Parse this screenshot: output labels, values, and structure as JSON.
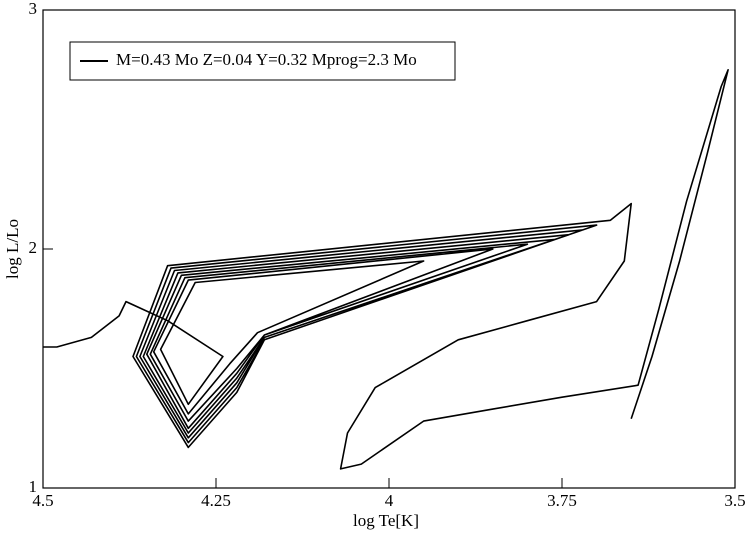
{
  "chart_data": {
    "type": "line",
    "x_label": "log Te[K]",
    "y_label": "log L/Lo",
    "xlim": [
      4.5,
      3.5
    ],
    "xticks": [
      4.5,
      4.25,
      4,
      3.75,
      3.5
    ],
    "ylim": [
      1,
      3
    ],
    "yticks": [
      1,
      2,
      3
    ],
    "legend": "upper left",
    "x": [
      3.65,
      3.62,
      3.58,
      3.54,
      3.51,
      3.52,
      3.57,
      3.61,
      3.64,
      3.75,
      3.85,
      3.95,
      4.04,
      4.07,
      4.06,
      4.02,
      3.9,
      3.8,
      3.7,
      3.66,
      3.65,
      3.68,
      4.32,
      4.37,
      4.29,
      4.22,
      4.18,
      3.7,
      4.315,
      4.365,
      4.29,
      4.22,
      4.18,
      3.72,
      4.31,
      4.36,
      4.29,
      4.22,
      4.18,
      3.74,
      4.305,
      4.355,
      4.29,
      4.22,
      4.18,
      3.76,
      4.3,
      4.35,
      4.29,
      4.22,
      4.18,
      3.8,
      4.295,
      4.345,
      4.29,
      4.22,
      4.18,
      3.85,
      4.29,
      4.34,
      4.29,
      4.23,
      4.19,
      3.95,
      4.28,
      4.33,
      4.29,
      4.24,
      4.32,
      4.38,
      4.39,
      4.43,
      4.48,
      4.5
    ],
    "series": [
      {
        "name": "M=0.43 Mo Z=0.04 Y=0.32 Mprog=2.3 Mo",
        "color": "#000000",
        "values": [
          1.29,
          1.55,
          1.95,
          2.4,
          2.75,
          2.68,
          2.2,
          1.75,
          1.43,
          1.38,
          1.33,
          1.28,
          1.1,
          1.08,
          1.23,
          1.42,
          1.62,
          1.7,
          1.78,
          1.95,
          2.19,
          2.12,
          1.93,
          1.55,
          1.17,
          1.4,
          1.62,
          2.1,
          1.92,
          1.55,
          1.19,
          1.42,
          1.62,
          2.08,
          1.91,
          1.55,
          1.21,
          1.44,
          1.63,
          2.06,
          1.9,
          1.55,
          1.23,
          1.46,
          1.63,
          2.04,
          1.89,
          1.56,
          1.25,
          1.48,
          1.64,
          2.02,
          1.88,
          1.56,
          1.28,
          1.5,
          1.64,
          2.0,
          1.87,
          1.57,
          1.31,
          1.52,
          1.65,
          1.95,
          1.86,
          1.58,
          1.35,
          1.55,
          1.7,
          1.78,
          1.72,
          1.63,
          1.59,
          1.59
        ]
      }
    ]
  }
}
